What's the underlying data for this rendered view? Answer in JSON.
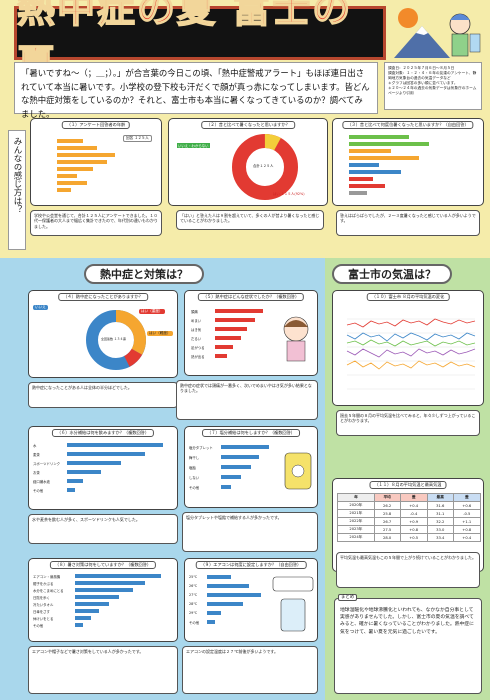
{
  "title": "熱中症の夏 富士の夏",
  "intro": "「暑いですね〜（；＿；）。」が合言葉の今日この頃、「熱中症警戒アラート」もほぼ連日出されていて本当に暑いです。小学校の登下校も汗だくで顔が真っ赤になってしまいます。皆どんな熱中症対策をしているのか？それと、富士市も本当に暑くなってきているのか？調べてみました。",
  "meta": [
    "調査日：２０２５年７月６日〜８月５日",
    "調査対象：１・２・４・６年の友達のアンケート、静岡地方気象台の過去の気温データなど",
    "＊グラフは回答の多い順に並べています。",
    "＊２０〜２４年の過去の気象データは気象庁のホームページより引用"
  ],
  "vertical_label": "みんなの感じ方は？",
  "sections": {
    "left": "熱中症と対策は？",
    "right": "富士市の気温は？"
  },
  "cards": {
    "c1": {
      "caption": "（１）アンケート回答者の年齢",
      "legend": "回答 １２５人",
      "note": "学校や公会堂を通じて、合計１２５人にアンケートできました。１０代〜保護者の大人まで幅広く集計できたので、年代別の違いもわかりました。"
    },
    "c2": {
      "caption": "（２）昔と比べて暑くなったと思いますか？",
      "center": "合計１２５人",
      "labels": [
        "はい １１５人(92%)",
        "いいえ・わからない"
      ],
      "note": "「はい」と答えた人は９割を超えていて、多くの人が昔より暑くなったと感じていることがわかりました。"
    },
    "c3": {
      "caption": "（３）昔と比べて何度位暑くなったと思いますか？（自由回答）",
      "note": "答えはばらばらでしたが、２〜３度暑くなったと感じている人が多いようです。"
    },
    "c4": {
      "caption": "（４）熱中症になったことがありますか？",
      "center": "全回答数 １３４票",
      "tags": [
        "いいえ",
        "はい（軽度）",
        "はい（重度）"
      ],
      "note": "熱中症になったことがある人は全体の半分ほどでした。"
    },
    "c5": {
      "caption": "（５）熱中症はどんな症状でしたか？（複数回答）",
      "items": [
        "頭痛",
        "めまい",
        "はき気",
        "だるい",
        "足がつる",
        "熱が出る"
      ],
      "note": "熱中症の症状では頭痛が一番多く、次いでめまいやはき気が多い結果となりました。"
    },
    "c6": {
      "caption": "（６）水分補給は何を飲みますか？（複数回答）",
      "items": [
        "水",
        "麦茶",
        "スポーツドリンク",
        "お茶",
        "経口補水液",
        "その他"
      ],
      "note": "水や麦茶を飲む人が多く、スポーツドリンクも人気でした。"
    },
    "c7": {
      "caption": "（７）塩分補給は何をしますか？（複数回答）",
      "items": [
        "塩分タブレット",
        "梅干し",
        "塩飴",
        "しない",
        "その他"
      ],
      "note": "塩分タブレットや塩飴で補給する人が多かったです。"
    },
    "c8": {
      "caption": "（８）暑さ対策は何をしていますか？（複数回答）",
      "items": [
        "エアコン・扇風機",
        "帽子をかぶる",
        "水分をこまめにとる",
        "日陰を歩く",
        "冷たいタオル",
        "日傘をさす",
        "休けいをとる",
        "その他"
      ],
      "note": "エアコンや帽子などで暑さ対策をしている人が多かったです。"
    },
    "c9": {
      "caption": "（９）エアコンは何度に設定しますか？（自由回答）",
      "temps": [
        "25℃",
        "26℃",
        "27℃",
        "28℃",
        "29℃",
        "その他"
      ],
      "note": "エアコンの設定温度は２７℃前後が多いようです。"
    },
    "c10": {
      "caption": "（１０）富士市 ８月の平均気温の変化",
      "note": "過去５年間の８月の平均気温を比べてみると、年々少しずつ上がっていることがわかります。"
    },
    "c11": {
      "caption": "（１１）８月の平均気温と最高気温",
      "headers": [
        "年",
        "平均",
        "差",
        "最高",
        "差"
      ],
      "rows": [
        [
          "2020年",
          "26.2",
          "+0.4",
          "31.6",
          "+0.6"
        ],
        [
          "2021年",
          "25.8",
          "-0.4",
          "31.1",
          "-0.5"
        ],
        [
          "2022年",
          "26.7",
          "+0.9",
          "32.2",
          "+1.1"
        ],
        [
          "2023年",
          "27.5",
          "+0.8",
          "33.0",
          "+0.8"
        ],
        [
          "2024年",
          "28.0",
          "+0.5",
          "33.4",
          "+0.4"
        ]
      ],
      "note": "平均気温も最高気温もこの５年間で上がり続けていることがわかりました。"
    }
  },
  "summary_tag": "まとめ",
  "summary": "地球温暖化や地球沸騰化といわれても、なかなか自分事として実感がありませんでした。しかし、富士市の夏の気温を調べてみると、確かに暑くなっていることがわかりました。熱中症に気をつけて、暑い夏を元気に過ごしたいです。"
}
